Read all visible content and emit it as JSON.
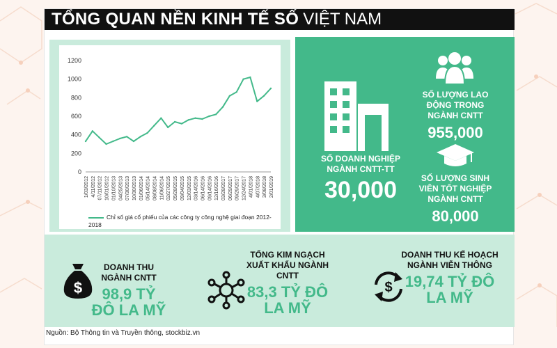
{
  "header": {
    "title_bold": "TỔNG QUAN NỀN KINH TẾ SỐ",
    "title_thin": "VIỆT NAM"
  },
  "colors": {
    "accent": "#43b98a",
    "light": "#c9ebdc",
    "dark": "#111111"
  },
  "chart_data": {
    "type": "line",
    "title": "",
    "xlabel": "",
    "ylabel": "",
    "ylim": [
      0,
      1200
    ],
    "yticks": [
      0,
      200,
      400,
      600,
      800,
      1000,
      1200
    ],
    "grid": false,
    "legend_position": "bottom",
    "x": [
      "1/03/2012",
      "4/11/2012",
      "07/11/2012",
      "10/01/2012",
      "01/10/2013",
      "04/25/2013",
      "07/30/2013",
      "10/30/2013",
      "01/06/2014",
      "05/14/2014",
      "08/08/2014",
      "11/06/2014",
      "02/27/2015",
      "05/28/2015",
      "09/04/2015",
      "12/03/2015",
      "03/14/2016",
      "06/14/2016",
      "09/14/2016",
      "12/16/2016",
      "03/28/2017",
      "06/29/2017",
      "09/29/2017",
      "12/24/2017",
      "4/01/2018",
      "4/07/2018",
      "3/08/2018",
      "2/01/2019"
    ],
    "series": [
      {
        "name": "Chỉ số giá cổ phiếu của các công ty công nghệ giai đoạn 2012-2018",
        "values": [
          330,
          440,
          370,
          300,
          330,
          360,
          380,
          330,
          380,
          420,
          500,
          580,
          480,
          540,
          520,
          560,
          580,
          570,
          600,
          620,
          700,
          820,
          860,
          1000,
          1020,
          760,
          820,
          900
        ]
      }
    ]
  },
  "stats": {
    "enterprises": {
      "label": "SỐ DOANH NGHIỆP NGÀNH CNTT-TT",
      "value": "30,000",
      "icon": "building-icon"
    },
    "workers": {
      "label": "SỐ LƯỢNG LAO ĐỘNG TRONG NGÀNH CNTT",
      "value": "955,000",
      "icon": "people-group-icon"
    },
    "graduates": {
      "label": "SỐ LƯỢNG SINH VIÊN TỐT NGHIỆP NGÀNH CNTT",
      "value": "80,000",
      "icon": "graduation-cap-icon"
    }
  },
  "bottom": {
    "revenue": {
      "label": "DOANH THU NGÀNH CNTT",
      "value": "98,9 TỶ ĐÔ LA MỸ",
      "icon": "money-bag-icon"
    },
    "export": {
      "label": "TỔNG KIM NGẠCH XUẤT KHẨU NGÀNH CNTT",
      "value": "83,3 TỶ ĐÔ LA MỸ",
      "icon": "network-icon"
    },
    "plan": {
      "label": "DOANH THU KẾ HOẠCH NGÀNH VIỄN THÔNG",
      "value": "19,74 TỶ ĐÔ LA MỸ",
      "icon": "dollar-cycle-icon"
    }
  },
  "source": "Nguồn: Bộ Thông tin và Truyền thông, stockbiz.vn"
}
